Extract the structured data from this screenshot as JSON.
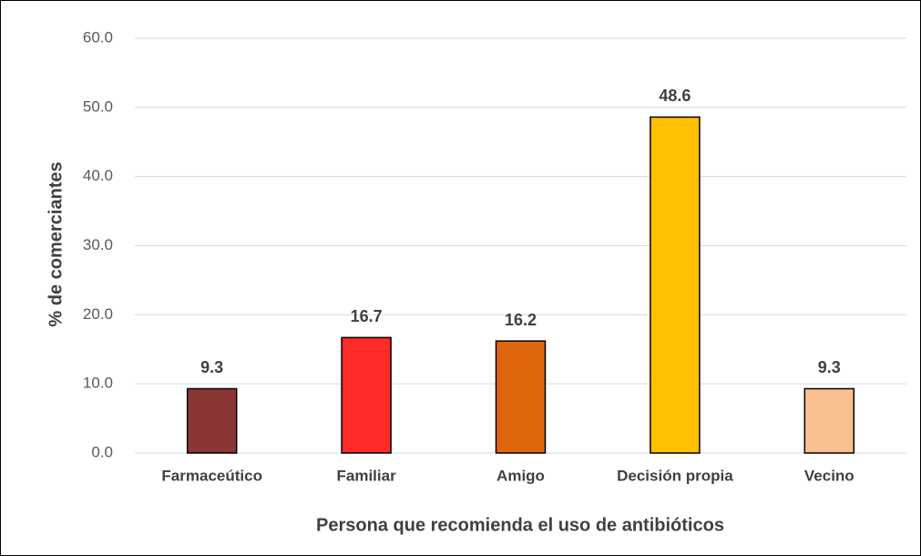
{
  "chart_data": {
    "type": "bar",
    "xlabel": "Persona que recomienda el uso de antibióticos",
    "ylabel": "% de comerciantes",
    "categories": [
      "Farmaceútico",
      "Familiar",
      "Amigo",
      "Decisión propia",
      "Vecino"
    ],
    "values": [
      9.3,
      16.7,
      16.2,
      48.6,
      9.3
    ],
    "colors": [
      "#8B3535",
      "#FF2A2A",
      "#E0660E",
      "#FFC000",
      "#F8C090"
    ],
    "ylim": [
      0,
      60
    ],
    "yticks": [
      {
        "value": 0,
        "label": "0.0"
      },
      {
        "value": 10,
        "label": "10.0"
      },
      {
        "value": 20,
        "label": "20.0"
      },
      {
        "value": 30,
        "label": "30.0"
      },
      {
        "value": 40,
        "label": "40.0"
      },
      {
        "value": 50,
        "label": "50.0"
      },
      {
        "value": 60,
        "label": "60.0"
      }
    ],
    "grid": true
  }
}
